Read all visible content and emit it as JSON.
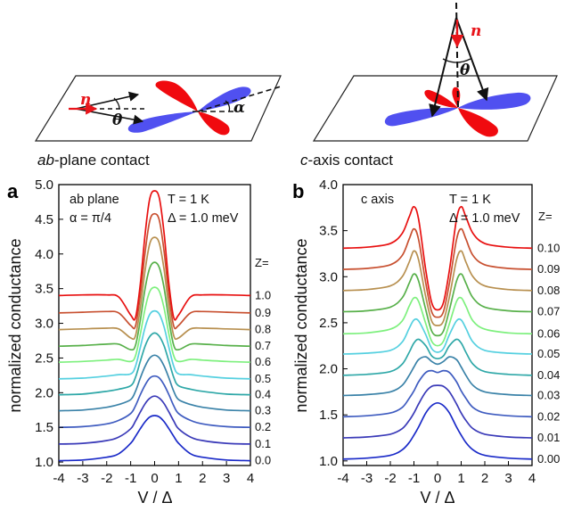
{
  "illustrations": {
    "left_caption_italic": "ab",
    "left_caption_rest": "-plane contact",
    "right_caption_italic": "c",
    "right_caption_rest": "-axis contact",
    "n_symbol": "n",
    "theta_symbol": "θ",
    "alpha_symbol": "α",
    "colors": {
      "lobe_positive": "#f00a0f",
      "lobe_negative": "#5050f0",
      "vector": "#e8141a"
    }
  },
  "chart_data": [
    {
      "type": "line",
      "panel_label": "a",
      "annotations": [
        "ab plane",
        "α = π/4",
        "T = 1 K",
        "Δ = 1.0 meV"
      ],
      "z_header": "Z=",
      "xlabel": "V / Δ",
      "ylabel": "normalized conductance",
      "xlim": [
        -4,
        4
      ],
      "ylim": [
        0.95,
        5.0
      ],
      "xticks": [
        "-4",
        "-3",
        "-2",
        "-1",
        "0",
        "1",
        "2",
        "3",
        "4"
      ],
      "yticks": [
        "1.0",
        "1.5",
        "2.0",
        "2.5",
        "3.0",
        "3.5",
        "4.0",
        "4.5",
        "5.0"
      ],
      "x": [
        -4,
        -3,
        -2,
        -1.5,
        -1,
        -0.8,
        -0.6,
        -0.4,
        -0.2,
        0,
        0.2,
        0.4,
        0.6,
        0.8,
        1,
        1.5,
        2,
        3,
        4
      ],
      "series": [
        {
          "name": "0.0",
          "color": "#1a2ac8",
          "values": [
            1.02,
            1.03,
            1.07,
            1.12,
            1.27,
            1.37,
            1.48,
            1.58,
            1.65,
            1.67,
            1.65,
            1.58,
            1.48,
            1.37,
            1.27,
            1.12,
            1.07,
            1.03,
            1.02
          ]
        },
        {
          "name": "0.1",
          "color": "#3a3ab8",
          "values": [
            1.26,
            1.27,
            1.31,
            1.36,
            1.48,
            1.59,
            1.72,
            1.84,
            1.92,
            1.95,
            1.92,
            1.84,
            1.72,
            1.59,
            1.48,
            1.36,
            1.31,
            1.27,
            1.26
          ]
        },
        {
          "name": "0.2",
          "color": "#3f5cc0",
          "values": [
            1.5,
            1.51,
            1.55,
            1.6,
            1.7,
            1.81,
            1.97,
            2.11,
            2.21,
            2.24,
            2.21,
            2.11,
            1.97,
            1.81,
            1.7,
            1.6,
            1.55,
            1.51,
            1.5
          ]
        },
        {
          "name": "0.3",
          "color": "#3a82a8",
          "values": [
            1.74,
            1.75,
            1.79,
            1.83,
            1.9,
            2.02,
            2.21,
            2.38,
            2.5,
            2.54,
            2.5,
            2.38,
            2.21,
            2.02,
            1.9,
            1.83,
            1.79,
            1.75,
            1.74
          ]
        },
        {
          "name": "0.4",
          "color": "#2fa8a8",
          "values": [
            1.97,
            1.98,
            2.02,
            2.05,
            2.1,
            2.22,
            2.45,
            2.67,
            2.81,
            2.86,
            2.81,
            2.67,
            2.45,
            2.22,
            2.1,
            2.05,
            2.02,
            1.98,
            1.97
          ]
        },
        {
          "name": "0.5",
          "color": "#55d0e0",
          "values": [
            2.2,
            2.21,
            2.24,
            2.26,
            2.27,
            2.38,
            2.65,
            2.94,
            3.13,
            3.18,
            3.13,
            2.94,
            2.65,
            2.38,
            2.27,
            2.26,
            2.24,
            2.21,
            2.2
          ]
        },
        {
          "name": "0.6",
          "color": "#7ef07e",
          "values": [
            2.44,
            2.45,
            2.47,
            2.48,
            2.45,
            2.53,
            2.84,
            3.21,
            3.46,
            3.52,
            3.46,
            3.21,
            2.84,
            2.53,
            2.45,
            2.48,
            2.47,
            2.45,
            2.44
          ]
        },
        {
          "name": "0.7",
          "color": "#58b04a",
          "values": [
            2.67,
            2.68,
            2.7,
            2.7,
            2.62,
            2.68,
            3.04,
            3.5,
            3.8,
            3.88,
            3.8,
            3.5,
            3.04,
            2.68,
            2.62,
            2.7,
            2.7,
            2.68,
            2.67
          ]
        },
        {
          "name": "0.8",
          "color": "#b89050",
          "values": [
            2.91,
            2.92,
            2.93,
            2.92,
            2.79,
            2.82,
            3.22,
            3.76,
            4.15,
            4.24,
            4.15,
            3.76,
            3.22,
            2.82,
            2.79,
            2.92,
            2.93,
            2.92,
            2.91
          ]
        },
        {
          "name": "0.9",
          "color": "#c85030",
          "values": [
            3.15,
            3.16,
            3.17,
            3.15,
            2.97,
            2.96,
            3.4,
            4.02,
            4.48,
            4.58,
            4.48,
            4.02,
            3.4,
            2.96,
            2.97,
            3.15,
            3.17,
            3.16,
            3.15
          ]
        },
        {
          "name": "1.0",
          "color": "#e81010",
          "values": [
            3.4,
            3.41,
            3.41,
            3.38,
            3.12,
            3.08,
            3.56,
            4.28,
            4.8,
            4.91,
            4.8,
            4.28,
            3.56,
            3.08,
            3.12,
            3.38,
            3.41,
            3.41,
            3.4
          ]
        }
      ]
    },
    {
      "type": "line",
      "panel_label": "b",
      "annotations": [
        "c axis",
        "T = 1 K",
        "Δ = 1.0 meV"
      ],
      "z_header": "Z=",
      "xlabel": "V / Δ",
      "ylabel": "normalized conductance",
      "xlim": [
        -4,
        4
      ],
      "ylim": [
        0.95,
        4.0
      ],
      "xticks": [
        "-4",
        "-3",
        "-2",
        "-1",
        "0",
        "1",
        "2",
        "3",
        "4"
      ],
      "yticks": [
        "1.0",
        "1.5",
        "2.0",
        "2.5",
        "3.0",
        "3.5",
        "4.0"
      ],
      "x": [
        -4,
        -3,
        -2,
        -1.5,
        -1.2,
        -1,
        -0.8,
        -0.5,
        -0.25,
        0,
        0.25,
        0.5,
        0.8,
        1,
        1.2,
        1.5,
        2,
        3,
        4
      ],
      "series": [
        {
          "name": "0.00",
          "color": "#1a2ac8",
          "values": [
            1.02,
            1.03,
            1.06,
            1.12,
            1.2,
            1.28,
            1.37,
            1.52,
            1.6,
            1.63,
            1.6,
            1.52,
            1.37,
            1.28,
            1.2,
            1.12,
            1.06,
            1.03,
            1.02
          ]
        },
        {
          "name": "0.01",
          "color": "#3a3ab8",
          "values": [
            1.25,
            1.26,
            1.29,
            1.35,
            1.44,
            1.52,
            1.62,
            1.75,
            1.81,
            1.82,
            1.81,
            1.75,
            1.62,
            1.52,
            1.44,
            1.35,
            1.29,
            1.26,
            1.25
          ]
        },
        {
          "name": "0.02",
          "color": "#3f5cc0",
          "values": [
            1.48,
            1.49,
            1.52,
            1.58,
            1.68,
            1.76,
            1.86,
            1.96,
            1.98,
            1.96,
            1.98,
            1.96,
            1.86,
            1.76,
            1.68,
            1.58,
            1.52,
            1.49,
            1.48
          ]
        },
        {
          "name": "0.03",
          "color": "#3a82a8",
          "values": [
            1.71,
            1.72,
            1.75,
            1.82,
            1.93,
            2.02,
            2.1,
            2.13,
            2.08,
            2.05,
            2.08,
            2.13,
            2.1,
            2.02,
            1.93,
            1.82,
            1.75,
            1.72,
            1.71
          ]
        },
        {
          "name": "0.04",
          "color": "#2fa8a8",
          "values": [
            1.93,
            1.94,
            1.97,
            2.05,
            2.18,
            2.28,
            2.32,
            2.25,
            2.14,
            2.11,
            2.14,
            2.25,
            2.32,
            2.28,
            2.18,
            2.05,
            1.97,
            1.94,
            1.93
          ]
        },
        {
          "name": "0.05",
          "color": "#55d0e0",
          "values": [
            2.16,
            2.17,
            2.2,
            2.29,
            2.44,
            2.53,
            2.52,
            2.37,
            2.22,
            2.18,
            2.22,
            2.37,
            2.52,
            2.53,
            2.44,
            2.29,
            2.2,
            2.17,
            2.16
          ]
        },
        {
          "name": "0.06",
          "color": "#7ef07e",
          "values": [
            2.38,
            2.39,
            2.43,
            2.52,
            2.68,
            2.77,
            2.73,
            2.49,
            2.3,
            2.25,
            2.3,
            2.49,
            2.73,
            2.77,
            2.68,
            2.52,
            2.43,
            2.39,
            2.38
          ]
        },
        {
          "name": "0.07",
          "color": "#58b04a",
          "values": [
            2.62,
            2.63,
            2.67,
            2.77,
            2.93,
            3.03,
            2.95,
            2.64,
            2.41,
            2.36,
            2.41,
            2.64,
            2.95,
            3.03,
            2.93,
            2.77,
            2.67,
            2.63,
            2.62
          ]
        },
        {
          "name": "0.08",
          "color": "#b89050",
          "values": [
            2.85,
            2.86,
            2.9,
            3.0,
            3.16,
            3.28,
            3.18,
            2.78,
            2.52,
            2.47,
            2.52,
            2.78,
            3.18,
            3.28,
            3.16,
            3.0,
            2.9,
            2.86,
            2.85
          ]
        },
        {
          "name": "0.09",
          "color": "#c85030",
          "values": [
            3.08,
            3.09,
            3.13,
            3.23,
            3.41,
            3.52,
            3.4,
            2.93,
            2.62,
            2.56,
            2.62,
            2.93,
            3.4,
            3.52,
            3.41,
            3.23,
            3.13,
            3.09,
            3.08
          ]
        },
        {
          "name": "0.10",
          "color": "#e81010",
          "values": [
            3.31,
            3.32,
            3.36,
            3.47,
            3.65,
            3.76,
            3.62,
            3.07,
            2.72,
            2.64,
            2.72,
            3.07,
            3.62,
            3.76,
            3.65,
            3.47,
            3.36,
            3.32,
            3.31
          ]
        }
      ]
    }
  ]
}
